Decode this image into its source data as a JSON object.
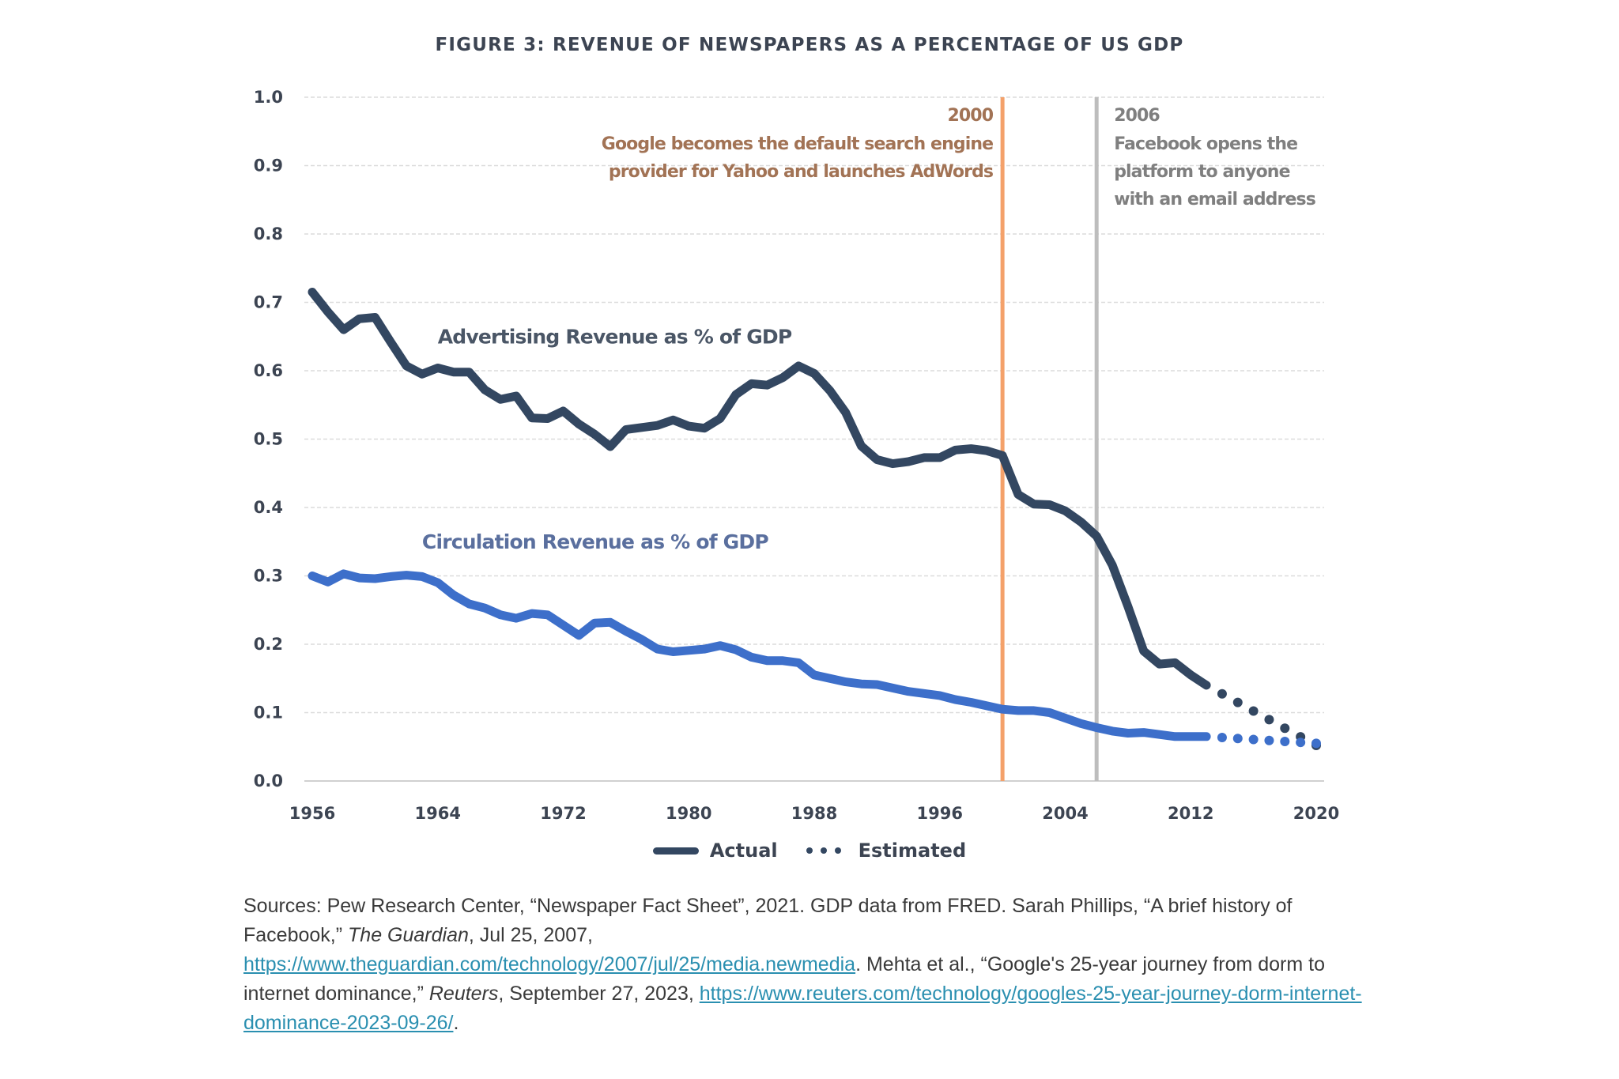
{
  "title": "FIGURE 3: REVENUE OF NEWSPAPERS AS A PERCENTAGE OF US GDP",
  "colors": {
    "advertising": "#334761",
    "circulation": "#3d6fca",
    "google_marker": "#f4a16a",
    "google_text": "#a27355",
    "facebook_marker": "#bdbdbd",
    "facebook_text": "#7f7f7f",
    "axis_text": "#3c4452",
    "link": "#2a8fb0"
  },
  "legend": {
    "actual_label": "Actual",
    "estimated_label": "Estimated"
  },
  "sources": {
    "part1": "Sources: Pew Research Center, “Newspaper Fact Sheet”, 2021. GDP data from FRED. Sarah Phillips, “A brief history of Facebook,” ",
    "guardian_italic": "The Guardian",
    "part2": ", Jul 25, 2007, ",
    "guardian_link": "https://www.theguardian.com/technology/2007/jul/25/media.newmedia",
    "part3": ". Mehta et al., “Google's 25-year journey from dorm to internet dominance,” ",
    "reuters_italic": "Reuters",
    "part4": ", September 27, 2023, ",
    "reuters_link": "https://www.reuters.com/technology/googles-25-year-journey-dorm-internet-dominance-2023-09-26/",
    "part5": "."
  },
  "chart_data": {
    "type": "line",
    "title": "FIGURE 3: REVENUE OF NEWSPAPERS AS A PERCENTAGE OF US GDP",
    "xlabel": "",
    "ylabel": "",
    "xlim": [
      1956,
      2020
    ],
    "ylim": [
      0.0,
      1.0
    ],
    "x_ticks": [
      "1956",
      "1964",
      "1972",
      "1980",
      "1988",
      "1996",
      "2004",
      "2012",
      "2020"
    ],
    "y_ticks": [
      "0.0",
      "0.1",
      "0.2",
      "0.3",
      "0.4",
      "0.5",
      "0.6",
      "0.7",
      "0.8",
      "0.9",
      "1.0"
    ],
    "grid": "horizontal dashed",
    "legend_position": "bottom-center",
    "series": [
      {
        "name": "Advertising Revenue as % of GDP",
        "key": "advertising",
        "label_at": [
          1964,
          0.64
        ],
        "actual": {
          "x": [
            1956,
            1957,
            1958,
            1959,
            1960,
            1961,
            1962,
            1963,
            1964,
            1965,
            1966,
            1967,
            1968,
            1969,
            1970,
            1971,
            1972,
            1973,
            1974,
            1975,
            1976,
            1977,
            1978,
            1979,
            1980,
            1981,
            1982,
            1983,
            1984,
            1985,
            1986,
            1987,
            1988,
            1989,
            1990,
            1991,
            1992,
            1993,
            1994,
            1995,
            1996,
            1997,
            1998,
            1999,
            2000,
            2001,
            2002,
            2003,
            2004,
            2005,
            2006,
            2007,
            2008,
            2009,
            2010,
            2011,
            2012,
            2013
          ],
          "y": [
            0.715,
            0.686,
            0.66,
            0.676,
            0.678,
            0.642,
            0.607,
            0.595,
            0.604,
            0.598,
            0.598,
            0.572,
            0.558,
            0.563,
            0.531,
            0.53,
            0.541,
            0.522,
            0.507,
            0.489,
            0.514,
            0.517,
            0.52,
            0.528,
            0.519,
            0.516,
            0.53,
            0.565,
            0.581,
            0.579,
            0.59,
            0.607,
            0.596,
            0.571,
            0.539,
            0.49,
            0.47,
            0.464,
            0.467,
            0.473,
            0.473,
            0.484,
            0.486,
            0.483,
            0.476,
            0.419,
            0.405,
            0.404,
            0.395,
            0.379,
            0.358,
            0.316,
            0.255,
            0.19,
            0.171,
            0.173,
            0.155,
            0.14
          ]
        },
        "estimated": {
          "x": [
            2013,
            2020
          ],
          "y": [
            0.14,
            0.052
          ]
        }
      },
      {
        "name": "Circulation Revenue as % of GDP",
        "key": "circulation",
        "label_at": [
          1963,
          0.34
        ],
        "actual": {
          "x": [
            1956,
            1957,
            1958,
            1959,
            1960,
            1961,
            1962,
            1963,
            1964,
            1965,
            1966,
            1967,
            1968,
            1969,
            1970,
            1971,
            1972,
            1973,
            1974,
            1975,
            1976,
            1977,
            1978,
            1979,
            1980,
            1981,
            1982,
            1983,
            1984,
            1985,
            1986,
            1987,
            1988,
            1989,
            1990,
            1991,
            1992,
            1993,
            1994,
            1995,
            1996,
            1997,
            1998,
            1999,
            2000,
            2001,
            2002,
            2003,
            2004,
            2005,
            2006,
            2007,
            2008,
            2009,
            2010,
            2011,
            2012,
            2013
          ],
          "y": [
            0.3,
            0.291,
            0.303,
            0.297,
            0.296,
            0.299,
            0.301,
            0.299,
            0.29,
            0.272,
            0.259,
            0.253,
            0.243,
            0.238,
            0.245,
            0.243,
            0.228,
            0.213,
            0.231,
            0.232,
            0.219,
            0.207,
            0.193,
            0.189,
            0.191,
            0.193,
            0.198,
            0.192,
            0.181,
            0.176,
            0.176,
            0.173,
            0.155,
            0.15,
            0.145,
            0.142,
            0.141,
            0.136,
            0.131,
            0.128,
            0.125,
            0.119,
            0.115,
            0.11,
            0.105,
            0.103,
            0.103,
            0.1,
            0.092,
            0.084,
            0.078,
            0.073,
            0.07,
            0.071,
            0.068,
            0.065,
            0.065,
            0.065
          ]
        },
        "estimated": {
          "x": [
            2013,
            2020
          ],
          "y": [
            0.065,
            0.055
          ]
        }
      }
    ],
    "annotations": [
      {
        "key": "google",
        "x": 2000,
        "year_label": "2000",
        "lines": [
          "Google becomes the default search engine",
          "provider for Yahoo and launches AdWords"
        ],
        "align": "right"
      },
      {
        "key": "facebook",
        "x": 2006,
        "year_label": "2006",
        "lines": [
          "Facebook opens the",
          "platform to anyone",
          "with an email address"
        ],
        "align": "left"
      }
    ]
  }
}
